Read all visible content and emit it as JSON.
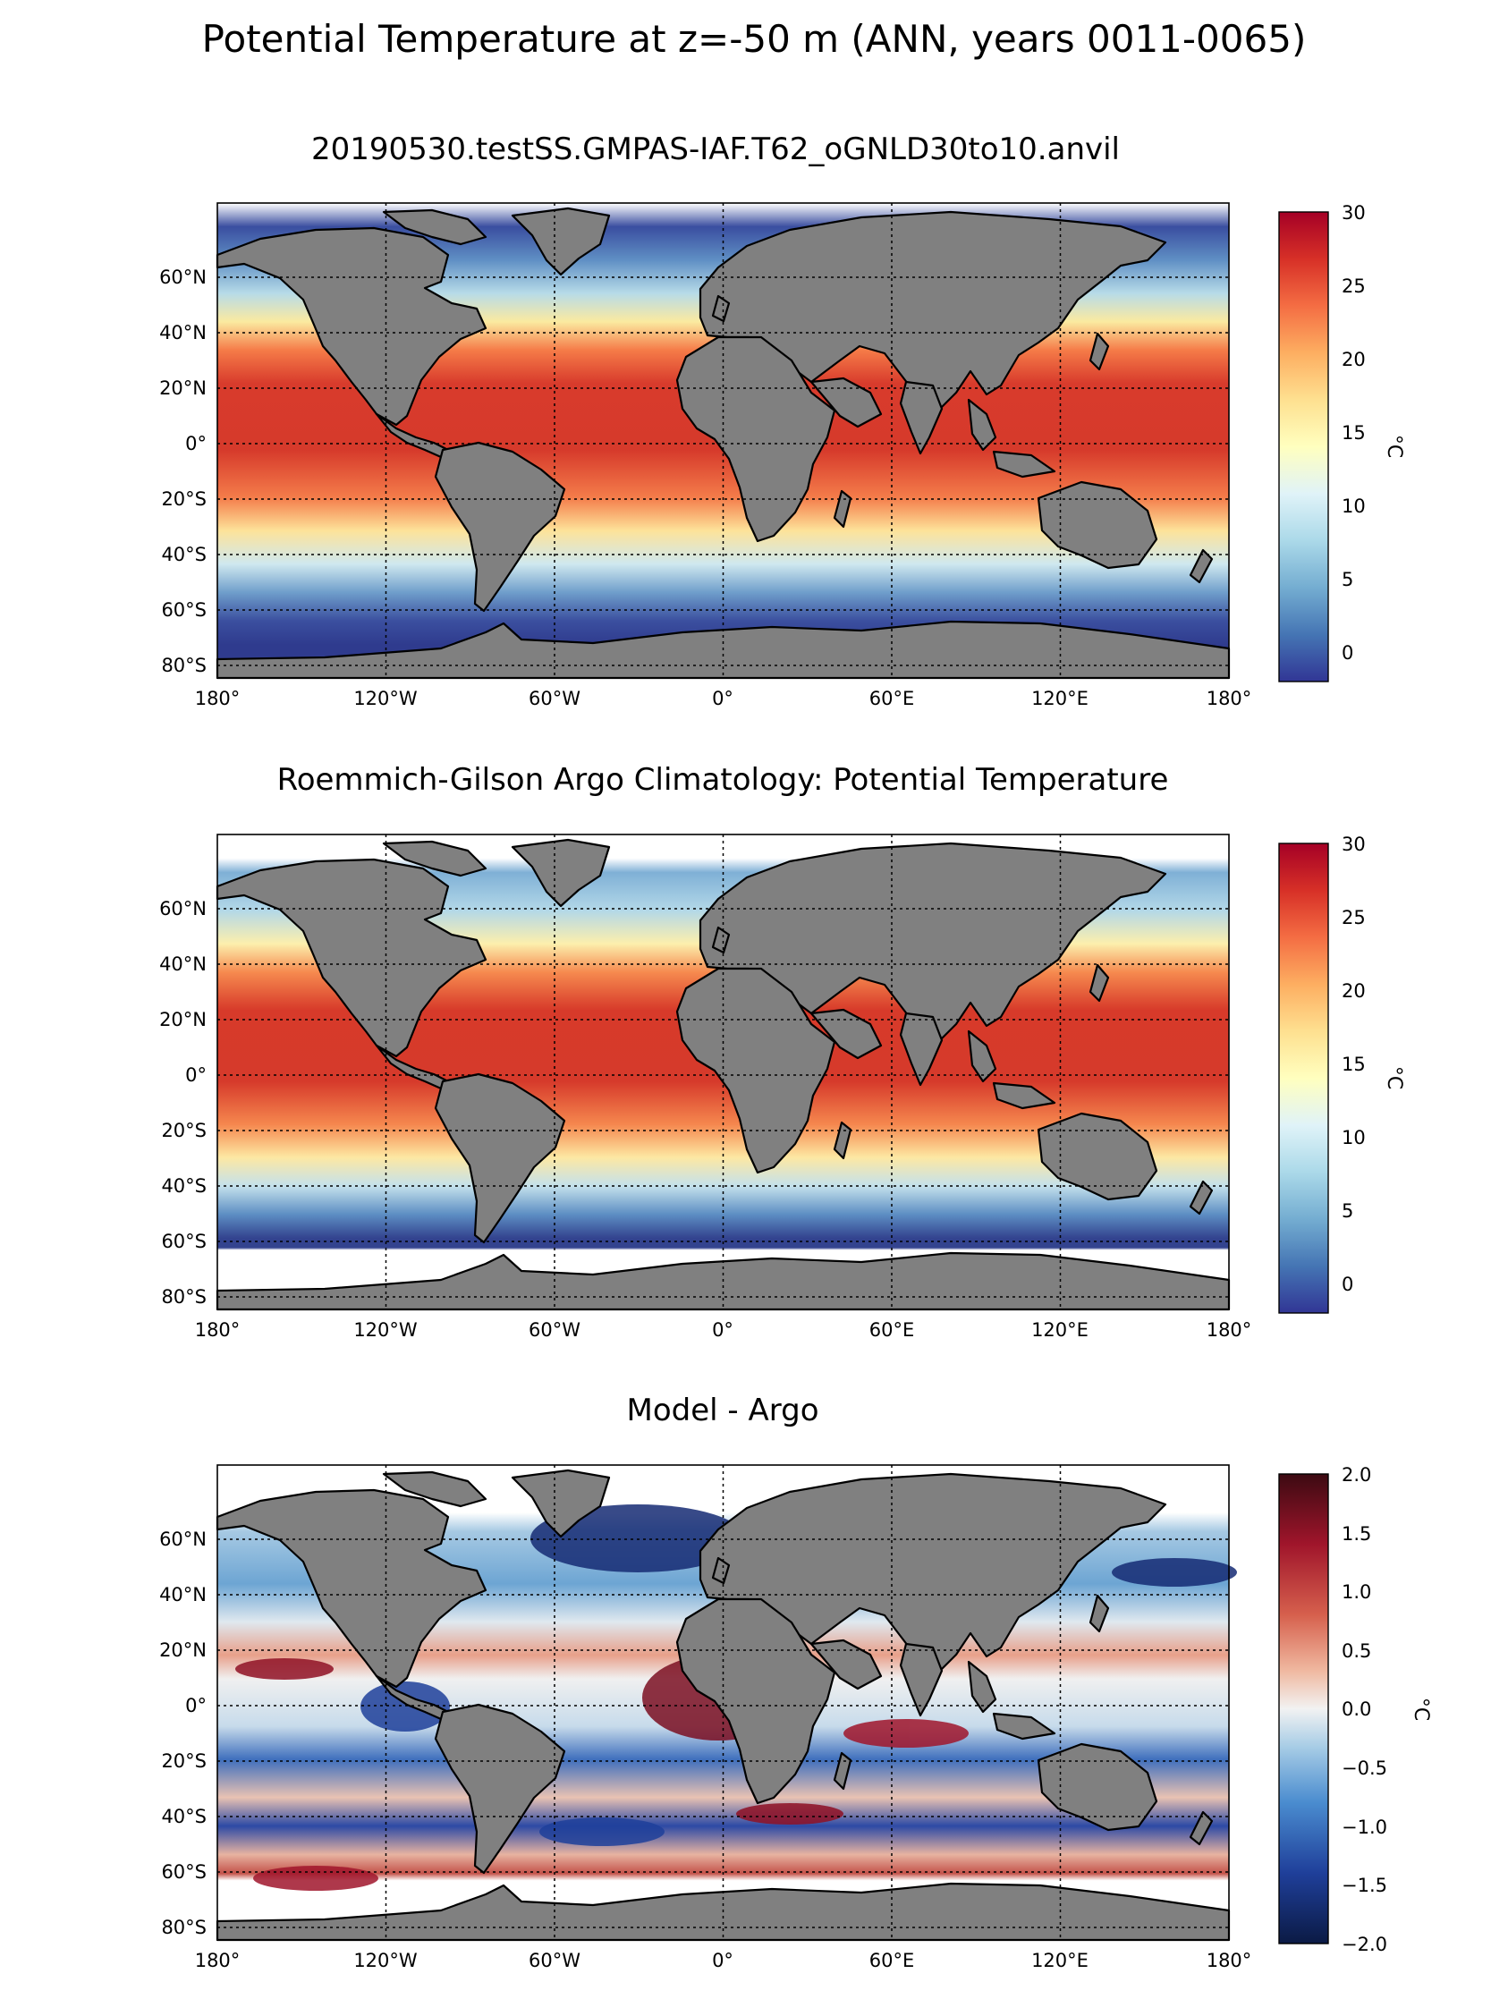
{
  "figure": {
    "title": "Potential Temperature at z=-50 m (ANN, years 0011-0065)"
  },
  "colors": {
    "land": "#808080",
    "missing": "#ffffff",
    "grid": "#000000"
  },
  "axes": {
    "lon_ticks": [
      "180°",
      "120°W",
      "60°W",
      "0°",
      "60°E",
      "120°E",
      "180°"
    ],
    "lat_ticks": [
      "60°N",
      "40°N",
      "20°N",
      "0°",
      "20°S",
      "40°S",
      "60°S",
      "80°S"
    ]
  },
  "panels": [
    {
      "title": "20190530.testSS.GMPAS-IAF.T62_oGNLD30to10.anvil",
      "colorbar": {
        "label": "°C",
        "ticks": [
          "30",
          "25",
          "20",
          "15",
          "10",
          "5",
          "0"
        ],
        "range": [
          -2,
          30
        ],
        "colormap": "RdYlBu_r"
      }
    },
    {
      "title": "Roemmich-Gilson Argo Climatology: Potential Temperature",
      "colorbar": {
        "label": "°C",
        "ticks": [
          "30",
          "25",
          "20",
          "15",
          "10",
          "5",
          "0"
        ],
        "range": [
          -2,
          30
        ],
        "colormap": "RdYlBu_r"
      }
    },
    {
      "title": "Model - Argo",
      "colorbar": {
        "label": "°C",
        "ticks": [
          "2.0",
          "1.5",
          "1.0",
          "0.5",
          "0.0",
          "−0.5",
          "−1.0",
          "−1.5",
          "−2.0"
        ],
        "range": [
          -2,
          2
        ],
        "colormap": "RdBu_r"
      }
    }
  ]
}
